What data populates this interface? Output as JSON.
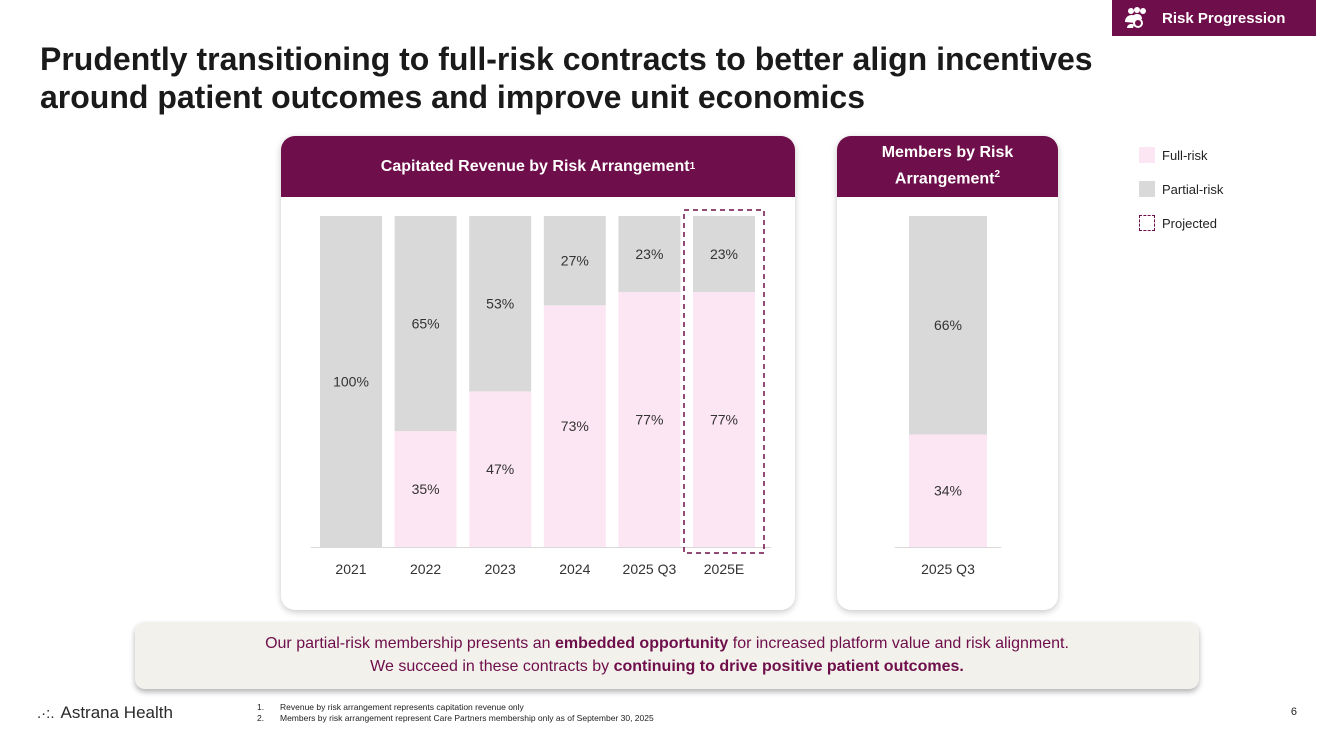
{
  "badge": {
    "label": "Risk Progression",
    "icon": "people-group-icon"
  },
  "title": {
    "line1": "Prudently transitioning to full-risk contracts to better align incentives",
    "line2": "around patient outcomes and improve unit economics"
  },
  "colors": {
    "brand": "#6e0e4a",
    "full_risk": "#fde6f3",
    "partial_risk": "#d9d9d9",
    "callout_bg": "#f3f1ec"
  },
  "legend": {
    "full": "Full-risk",
    "partial": "Partial-risk",
    "projected": "Projected"
  },
  "chart_data": [
    {
      "type": "bar",
      "stacked": true,
      "percent": true,
      "title": "Capitated Revenue by Risk Arrangement",
      "title_footnote": "1",
      "categories": [
        "2021",
        "2022",
        "2023",
        "2024",
        "2025 Q3",
        "2025E"
      ],
      "series": [
        {
          "name": "Full-risk",
          "values": [
            0,
            35,
            47,
            73,
            77,
            77
          ],
          "labels": [
            "",
            "35%",
            "47%",
            "73%",
            "77%",
            "77%"
          ]
        },
        {
          "name": "Partial-risk",
          "values": [
            100,
            65,
            53,
            27,
            23,
            23
          ],
          "labels": [
            "100%",
            "65%",
            "53%",
            "27%",
            "23%",
            "23%"
          ]
        }
      ],
      "projected": [
        "2025E"
      ],
      "ylim": [
        0,
        100
      ],
      "grid": false
    },
    {
      "type": "bar",
      "stacked": true,
      "percent": true,
      "title_line1": "Members by Risk",
      "title_line2": "Arrangement",
      "title_footnote": "2",
      "categories": [
        "2025 Q3"
      ],
      "series": [
        {
          "name": "Full-risk",
          "values": [
            34
          ],
          "labels": [
            "34%"
          ]
        },
        {
          "name": "Partial-risk",
          "values": [
            66
          ],
          "labels": [
            "66%"
          ]
        }
      ],
      "ylim": [
        0,
        100
      ],
      "grid": false
    }
  ],
  "callout": {
    "line1_a": "Our partial-risk membership presents an ",
    "line1_b": "embedded opportunity",
    "line1_c": " for increased platform value and risk alignment.",
    "line2_a": "We succeed in these contracts by ",
    "line2_b": "continuing to drive positive patient outcomes."
  },
  "logo": {
    "text": "Astrana Health"
  },
  "footnotes": [
    {
      "num": "1.",
      "text": "Revenue by risk arrangement represents capitation revenue only"
    },
    {
      "num": "2.",
      "text": "Members by risk arrangement represent Care Partners membership only as of September 30, 2025"
    }
  ],
  "page_number": "6"
}
